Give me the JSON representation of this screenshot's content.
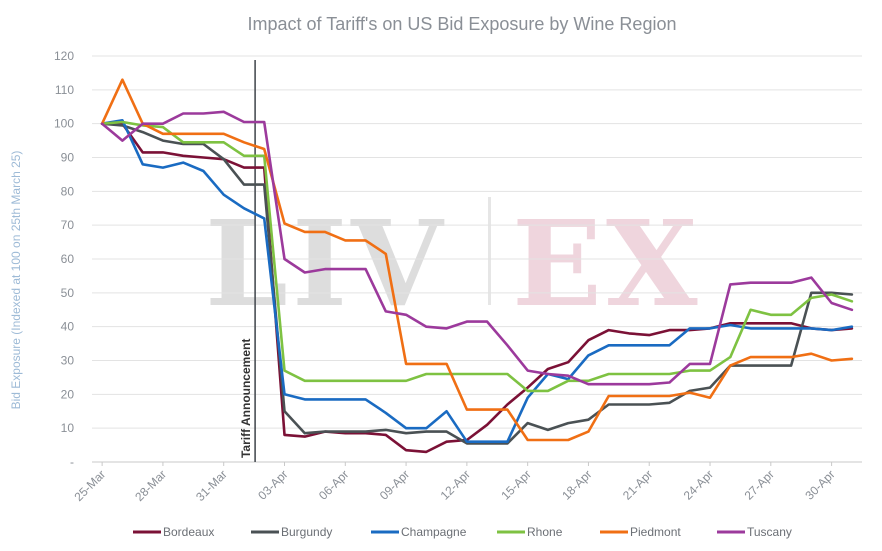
{
  "chart_data": {
    "type": "line",
    "title": "Impact of Tariff's on US Bid Exposure by Wine Region",
    "ylabel": "Bid Exposure (Indexed at 100 on 25th March 25)",
    "xlabel": "",
    "ylim": [
      0,
      120
    ],
    "yticks": [
      "-",
      "10",
      "20",
      "30",
      "40",
      "50",
      "60",
      "70",
      "80",
      "90",
      "100",
      "110",
      "120"
    ],
    "xticks": [
      "25-Mar",
      "28-Mar",
      "31-Mar",
      "03-Apr",
      "06-Apr",
      "09-Apr",
      "12-Apr",
      "15-Apr",
      "18-Apr",
      "21-Apr",
      "24-Apr",
      "27-Apr",
      "30-Apr"
    ],
    "grid": true,
    "legend_position": "bottom",
    "watermark": "LIV-EX",
    "annotation": {
      "text": "Tariff Announcement",
      "x": "02-Apr"
    },
    "x": [
      "25-Mar",
      "26-Mar",
      "27-Mar",
      "28-Mar",
      "29-Mar",
      "30-Mar",
      "31-Mar",
      "01-Apr",
      "02-Apr",
      "03-Apr",
      "04-Apr",
      "05-Apr",
      "06-Apr",
      "07-Apr",
      "08-Apr",
      "09-Apr",
      "10-Apr",
      "11-Apr",
      "12-Apr",
      "13-Apr",
      "14-Apr",
      "15-Apr",
      "16-Apr",
      "17-Apr",
      "18-Apr",
      "19-Apr",
      "20-Apr",
      "21-Apr",
      "22-Apr",
      "23-Apr",
      "24-Apr",
      "25-Apr",
      "26-Apr",
      "27-Apr",
      "28-Apr",
      "29-Apr",
      "30-Apr",
      "01-May"
    ],
    "series": [
      {
        "name": "Bordeaux",
        "color": "#7b1136",
        "values": [
          100,
          100,
          91.5,
          91.5,
          90.5,
          90,
          89.5,
          87,
          87,
          8,
          7.5,
          9,
          8.5,
          8.5,
          8,
          3.5,
          3,
          6,
          6.5,
          11,
          17,
          22,
          27.5,
          29.5,
          36,
          39,
          38,
          37.5,
          39,
          39,
          39.5,
          41,
          41,
          41,
          41,
          39.5,
          39,
          39.5
        ]
      },
      {
        "name": "Burgundy",
        "color": "#4a5154",
        "values": [
          100,
          99.5,
          97.5,
          95,
          94,
          94,
          89.5,
          82,
          82,
          15,
          8.5,
          9,
          9,
          9,
          9.5,
          8.5,
          9,
          9,
          5.5,
          5.5,
          5.5,
          11.5,
          9.5,
          11.5,
          12.5,
          17,
          17,
          17,
          17.5,
          21,
          22,
          28.5,
          28.5,
          28.5,
          28.5,
          50,
          50,
          49.5
        ]
      },
      {
        "name": "Champagne",
        "color": "#1a6bc2",
        "values": [
          100,
          101,
          88,
          87,
          88.5,
          86,
          79,
          75,
          72,
          20,
          18.5,
          18.5,
          18.5,
          18.5,
          14.5,
          10,
          10,
          15,
          6,
          6,
          6,
          19,
          26,
          24.5,
          31.5,
          34.5,
          34.5,
          34.5,
          34.5,
          39.5,
          39.5,
          40.5,
          39.5,
          39.5,
          39.5,
          39.5,
          39,
          40
        ]
      },
      {
        "name": "Rhone",
        "color": "#7ec242",
        "values": [
          100,
          100.5,
          99.5,
          99,
          94.5,
          94.5,
          94.5,
          90.5,
          90.5,
          27,
          24,
          24,
          24,
          24,
          24,
          24,
          26,
          26,
          26,
          26,
          26,
          21,
          21,
          24,
          24,
          26,
          26,
          26,
          26,
          27,
          27,
          31,
          45,
          43.5,
          43.5,
          48.5,
          49.5,
          47.5
        ]
      },
      {
        "name": "Piedmont",
        "color": "#f06f14",
        "values": [
          100,
          113,
          100,
          97,
          97,
          97,
          97,
          94.5,
          92.5,
          70.5,
          68,
          68,
          65.5,
          65.5,
          61.5,
          29,
          29,
          29,
          15.5,
          15.5,
          15.5,
          6.5,
          6.5,
          6.5,
          9,
          19.5,
          19.5,
          19.5,
          19.5,
          20.5,
          19,
          28.5,
          31,
          31,
          31,
          32,
          30,
          30.5
        ]
      },
      {
        "name": "Tuscany",
        "color": "#9c3a9c",
        "values": [
          100,
          95,
          100,
          100,
          103,
          103,
          103.5,
          100.5,
          100.5,
          60,
          56,
          57,
          57,
          57,
          44.5,
          43.5,
          40,
          39.5,
          41.5,
          41.5,
          34.5,
          27,
          26,
          25.5,
          23,
          23,
          23,
          23,
          23.5,
          29,
          29,
          52.5,
          53,
          53,
          53,
          54.5,
          47,
          45
        ]
      }
    ]
  }
}
